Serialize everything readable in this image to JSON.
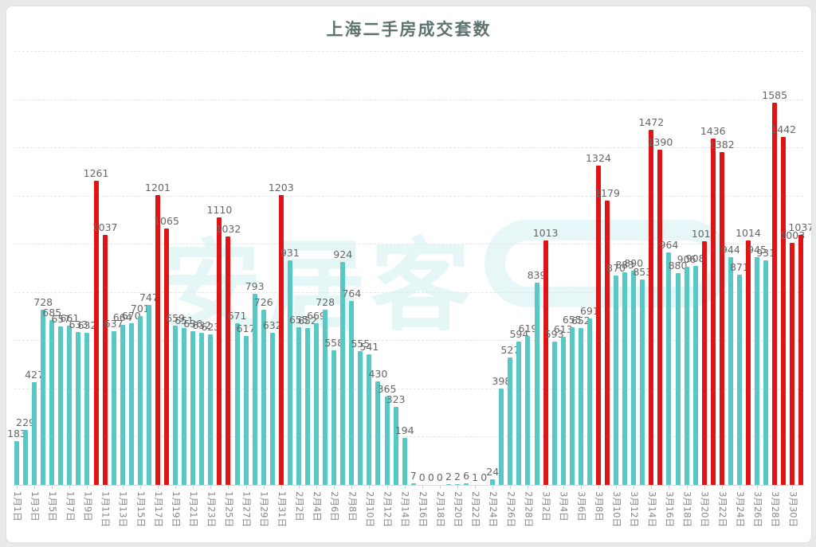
{
  "page": {
    "title": "上海二手房成交套数"
  },
  "watermark": {
    "text": "安居客"
  },
  "chart_data": {
    "type": "bar",
    "title": "上海二手房成交套数",
    "xlabel": "",
    "ylabel": "",
    "ylim": [
      0,
      1800
    ],
    "grid_step": 200,
    "grid": "horizontal-dashed",
    "legend": "none",
    "x_tick_every": 2,
    "highlight_rule": "bars with value > 1000 are red, others teal",
    "colors": {
      "normal": "#57c8c4",
      "high": "#e01414",
      "label": "#666666",
      "axis_label": "#878787"
    },
    "x": [
      "1月1日",
      "1月2日",
      "1月3日",
      "1月4日",
      "1月5日",
      "1月6日",
      "1月7日",
      "1月8日",
      "1月9日",
      "1月10日",
      "1月11日",
      "1月12日",
      "1月13日",
      "1月14日",
      "1月15日",
      "1月16日",
      "1月17日",
      "1月18日",
      "1月19日",
      "1月20日",
      "1月21日",
      "1月22日",
      "1月23日",
      "1月24日",
      "1月25日",
      "1月26日",
      "1月27日",
      "1月28日",
      "1月29日",
      "1月30日",
      "1月31日",
      "2月1日",
      "2月2日",
      "2月3日",
      "2月4日",
      "2月5日",
      "2月6日",
      "2月7日",
      "2月8日",
      "2月9日",
      "2月10日",
      "2月11日",
      "2月12日",
      "2月13日",
      "2月14日",
      "2月15日",
      "2月16日",
      "2月17日",
      "2月18日",
      "2月19日",
      "2月20日",
      "2月21日",
      "2月22日",
      "2月23日",
      "2月24日",
      "2月25日",
      "2月26日",
      "2月27日",
      "2月28日",
      "3月1日",
      "3月2日",
      "3月3日",
      "3月4日",
      "3月5日",
      "3月6日",
      "3月7日",
      "3月8日",
      "3月9日",
      "3月10日",
      "3月11日",
      "3月12日",
      "3月13日",
      "3月14日",
      "3月15日",
      "3月16日",
      "3月17日",
      "3月18日",
      "3月19日",
      "3月20日",
      "3月21日",
      "3月22日",
      "3月23日",
      "3月24日",
      "3月25日",
      "3月26日",
      "3月27日",
      "3月28日",
      "3月29日",
      "3月30日",
      "3月31日"
    ],
    "values": [
      183,
      229,
      427,
      728,
      685,
      657,
      661,
      633,
      632,
      1261,
      1037,
      637,
      664,
      670,
      701,
      747,
      1201,
      1065,
      659,
      651,
      636,
      632,
      623,
      1110,
      1032,
      671,
      617,
      793,
      726,
      632,
      1203,
      931,
      655,
      652,
      669,
      728,
      558,
      924,
      764,
      555,
      541,
      430,
      365,
      323,
      194,
      7,
      0,
      0,
      0,
      2,
      2,
      6,
      1,
      0,
      24,
      398,
      527,
      594,
      619,
      839,
      1013,
      593,
      613,
      655,
      652,
      691,
      1324,
      1179,
      870,
      883,
      890,
      853,
      1472,
      1390,
      964,
      880,
      906,
      908,
      1012,
      1436,
      1382,
      944,
      871,
      1014,
      945,
      931,
      1585,
      1442,
      1003,
      1037
    ]
  }
}
